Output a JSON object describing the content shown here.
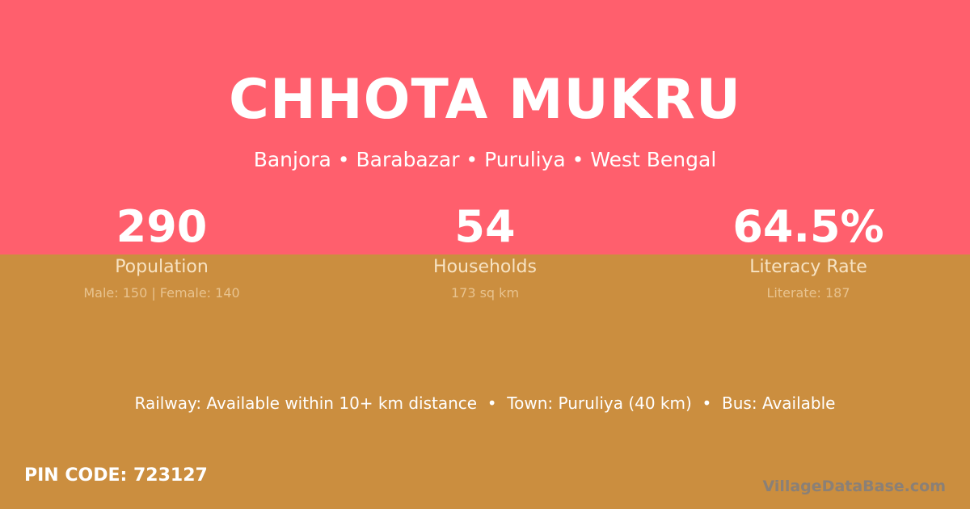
{
  "village": {
    "name": "CHHOTA MUKRU",
    "location": "Banjora • Barabazar • Puruliya • West Bengal"
  },
  "stats": [
    {
      "value": "290",
      "label": "Population",
      "detail": "Male: 150 | Female: 140"
    },
    {
      "value": "54",
      "label": "Households",
      "detail": "173 sq km"
    },
    {
      "value": "64.5%",
      "label": "Literacy Rate",
      "detail": "Literate: 187"
    }
  ],
  "transport": "Railway: Available within 10+ km distance  •  Town: Puruliya (40 km)  •  Bus: Available",
  "pin": "PIN CODE: 723127",
  "brand": "VillageDataBase.com",
  "colors": {
    "top": "#ff5f6d",
    "bottom": "#cb8e3f"
  }
}
